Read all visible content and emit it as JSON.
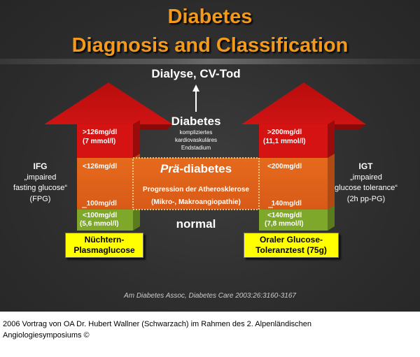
{
  "title_line1": "Diabetes",
  "title_line2": "Diagnosis and Classification",
  "top_outcome": "Dialyse, CV-Tod",
  "center": {
    "diabetes": "Diabetes",
    "diabetes_sub1": "kompliziertes",
    "diabetes_sub2": "kardiovaskuläres",
    "diabetes_sub3": "Endstadium",
    "prae_prefix": "Prä",
    "prae_suffix": "-diabetes",
    "progression1": "Progression der Atherosklerose",
    "progression2": "(Mikro-, Makroangiopathie)",
    "normal": "normal"
  },
  "left": {
    "label": "IFG",
    "desc1": "„impaired",
    "desc2": "fasting glucose“",
    "desc3": "(FPG)",
    "red1": ">126mg/dl",
    "red2": "(7 mmol/l)",
    "orange_top": "<126mg/dl",
    "orange_bottom": "100mg/dl",
    "green1": "<100mg/dl",
    "green2": "(5,6 mmol/l)",
    "test1": "Nüchtern-",
    "test2": "Plasmaglucose"
  },
  "right": {
    "label": "IGT",
    "desc1": "„impaired",
    "desc2": "glucose tolerance“",
    "desc3": "(2h pp-PG)",
    "red1": ">200mg/dl",
    "red2": "(11,1 mmol/l)",
    "orange_top": "<200mg/dl",
    "orange_bottom": "140mg/dl",
    "green1": "<140mg/dl",
    "green2": "(7,8 mmol/l)",
    "test1": "Oraler Glucose-",
    "test2": "Toleranztest (75g)"
  },
  "citation": "Am Diabetes Assoc, Diabetes Care 2003:26:3160-3167",
  "footer_line1": "2006 Vortrag von OA Dr. Hubert Wallner (Schwarzach) im Rahmen des 2. Alpenländischen",
  "footer_line2": "Angiologiesymposiums ©",
  "colors": {
    "red": "#d51313",
    "orange": "#e0601a",
    "green": "#7da82a",
    "title": "#f39a1c",
    "yellow": "#ffff00"
  }
}
